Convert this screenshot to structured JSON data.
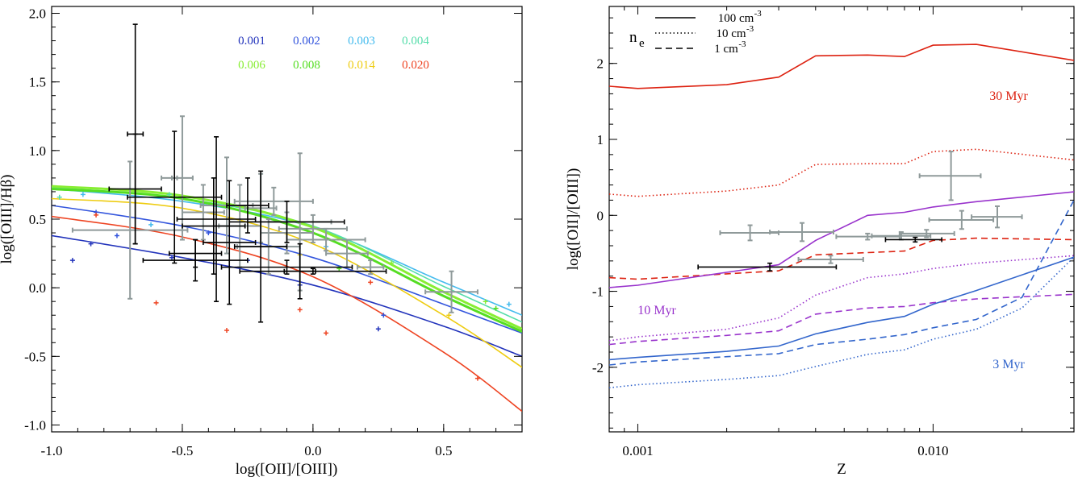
{
  "chart_data": [
    {
      "type": "line",
      "panel": "left",
      "xlabel": "log([OII]/[OIII])",
      "ylabel": "log([OIII]/Hβ)",
      "xlim": [
        -1.0,
        0.8
      ],
      "ylim": [
        -1.05,
        2.05
      ],
      "xticks": [
        -1.0,
        -0.5,
        0.0,
        0.5
      ],
      "xtick_labels": [
        "-1.0",
        "-0.5",
        "0.0",
        "0.5"
      ],
      "yticks": [
        -1.0,
        -0.5,
        0.0,
        0.5,
        1.0,
        1.5,
        2.0
      ],
      "ytick_labels": [
        "-1.0",
        "-0.5",
        "0.0",
        "0.5",
        "1.0",
        "1.5",
        "2.0"
      ],
      "legend": [
        {
          "label": "0.001",
          "color": "#2233bb"
        },
        {
          "label": "0.002",
          "color": "#3355dd"
        },
        {
          "label": "0.003",
          "color": "#44bbee"
        },
        {
          "label": "0.004",
          "color": "#55ddaa"
        },
        {
          "label": "0.006",
          "color": "#88ee33"
        },
        {
          "label": "0.008",
          "color": "#55dd22"
        },
        {
          "label": "0.014",
          "color": "#eecc11"
        },
        {
          "label": "0.020",
          "color": "#ee4422"
        }
      ],
      "series": [
        {
          "name": "0.001",
          "color": "#2233bb",
          "x": [
            -1.0,
            -0.5,
            0.0,
            0.5,
            0.8
          ],
          "y": [
            0.38,
            0.22,
            0.02,
            -0.28,
            -0.5
          ]
        },
        {
          "name": "0.002",
          "color": "#3355dd",
          "x": [
            -1.0,
            -0.5,
            0.0,
            0.5,
            0.8
          ],
          "y": [
            0.6,
            0.45,
            0.22,
            -0.12,
            -0.33
          ]
        },
        {
          "name": "0.003",
          "color": "#44bbee",
          "x": [
            -1.0,
            -0.5,
            0.0,
            0.5,
            0.8
          ],
          "y": [
            0.72,
            0.63,
            0.44,
            0.04,
            -0.2
          ]
        },
        {
          "name": "0.004",
          "color": "#55ddaa",
          "x": [
            -1.0,
            -0.5,
            0.0,
            0.5,
            0.8
          ],
          "y": [
            0.73,
            0.65,
            0.45,
            0.01,
            -0.25
          ]
        },
        {
          "name": "0.006",
          "color": "#88ee33",
          "x": [
            -1.0,
            -0.5,
            0.0,
            0.5,
            0.8
          ],
          "y": [
            0.74,
            0.67,
            0.44,
            -0.03,
            -0.3
          ]
        },
        {
          "name": "0.008",
          "color": "#55dd22",
          "x": [
            -1.0,
            -0.5,
            0.0,
            0.5,
            0.8
          ],
          "y": [
            0.72,
            0.65,
            0.4,
            -0.06,
            -0.32
          ]
        },
        {
          "name": "0.014",
          "color": "#eecc11",
          "x": [
            -1.0,
            -0.5,
            0.0,
            0.5,
            0.8
          ],
          "y": [
            0.65,
            0.58,
            0.32,
            -0.2,
            -0.58
          ]
        },
        {
          "name": "0.020",
          "color": "#ee4422",
          "x": [
            -1.0,
            -0.5,
            0.0,
            0.5,
            0.8
          ],
          "y": [
            0.52,
            0.37,
            0.08,
            -0.47,
            -0.9
          ]
        }
      ],
      "model_points": [
        {
          "color": "#2233bb",
          "x": -0.92,
          "y": 0.2
        },
        {
          "color": "#2233bb",
          "x": -0.85,
          "y": 0.32
        },
        {
          "color": "#2233bb",
          "x": -0.54,
          "y": 0.22
        },
        {
          "color": "#2233bb",
          "x": -0.25,
          "y": 0.2
        },
        {
          "color": "#2233bb",
          "x": -0.05,
          "y": 0.02
        },
        {
          "color": "#2233bb",
          "x": 0.25,
          "y": -0.3
        },
        {
          "color": "#3355dd",
          "x": -0.83,
          "y": 0.55
        },
        {
          "color": "#3355dd",
          "x": -0.75,
          "y": 0.38
        },
        {
          "color": "#3355dd",
          "x": -0.4,
          "y": 0.4
        },
        {
          "color": "#3355dd",
          "x": 0.27,
          "y": -0.2
        },
        {
          "color": "#44bbee",
          "x": -0.88,
          "y": 0.68
        },
        {
          "color": "#44bbee",
          "x": -0.62,
          "y": 0.46
        },
        {
          "color": "#44bbee",
          "x": 0.05,
          "y": 0.3
        },
        {
          "color": "#44bbee",
          "x": 0.75,
          "y": -0.12
        },
        {
          "color": "#55ddaa",
          "x": -0.97,
          "y": 0.66
        },
        {
          "color": "#55ddaa",
          "x": -0.55,
          "y": 0.68
        },
        {
          "color": "#88ee33",
          "x": 0.3,
          "y": 0.18
        },
        {
          "color": "#88ee33",
          "x": 0.66,
          "y": -0.1
        },
        {
          "color": "#55dd22",
          "x": 0.1,
          "y": 0.14
        },
        {
          "color": "#55dd22",
          "x": 0.7,
          "y": -0.15
        },
        {
          "color": "#eecc11",
          "x": -0.05,
          "y": 0.24
        },
        {
          "color": "#eecc11",
          "x": 0.52,
          "y": -0.2
        },
        {
          "color": "#ee4422",
          "x": -0.83,
          "y": 0.53
        },
        {
          "color": "#ee4422",
          "x": -0.6,
          "y": -0.11
        },
        {
          "color": "#ee4422",
          "x": -0.33,
          "y": -0.31
        },
        {
          "color": "#ee4422",
          "x": -0.05,
          "y": -0.16
        },
        {
          "color": "#ee4422",
          "x": 0.05,
          "y": -0.33
        },
        {
          "color": "#ee4422",
          "x": 0.22,
          "y": 0.04
        },
        {
          "color": "#ee4422",
          "x": 0.63,
          "y": -0.66
        }
      ],
      "observations_gray": [
        {
          "x": -0.7,
          "y": 0.42,
          "xerr": 0.22,
          "yerr": 0.5
        },
        {
          "x": -0.55,
          "y": 0.8,
          "xerr": 0.03,
          "yerr": 0.0
        },
        {
          "x": -0.5,
          "y": 0.8,
          "xerr": 0.04,
          "yerr": 0.45
        },
        {
          "x": -0.42,
          "y": 0.55,
          "xerr": 0.08,
          "yerr": 0.2
        },
        {
          "x": -0.33,
          "y": 0.6,
          "xerr": 0.1,
          "yerr": 0.35
        },
        {
          "x": -0.28,
          "y": 0.45,
          "xerr": 0.08,
          "yerr": 0.3
        },
        {
          "x": -0.2,
          "y": 0.58,
          "xerr": 0.06,
          "yerr": 0.25
        },
        {
          "x": -0.17,
          "y": 0.3,
          "xerr": 0.12,
          "yerr": 0.2
        },
        {
          "x": -0.15,
          "y": 0.63,
          "xerr": 0.15,
          "yerr": 0.1
        },
        {
          "x": -0.05,
          "y": 0.48,
          "xerr": 0.12,
          "yerr": 0.5
        },
        {
          "x": -0.1,
          "y": 0.4,
          "xerr": 0.1,
          "yerr": 0.15
        },
        {
          "x": 0.0,
          "y": 0.43,
          "xerr": 0.13,
          "yerr": 0.1
        },
        {
          "x": 0.05,
          "y": 0.35,
          "xerr": 0.15,
          "yerr": 0.08
        },
        {
          "x": 0.13,
          "y": 0.25,
          "xerr": 0.08,
          "yerr": 0.1
        },
        {
          "x": 0.22,
          "y": 0.15,
          "xerr": 0.05,
          "yerr": 0.05
        },
        {
          "x": 0.53,
          "y": -0.03,
          "xerr": 0.1,
          "yerr": 0.15
        }
      ],
      "observations_black": [
        {
          "x": -0.68,
          "y": 1.12,
          "xerr": 0.03,
          "yerr": 0.8
        },
        {
          "x": -0.68,
          "y": 0.72,
          "xerr": 0.1,
          "yerr": 0.4
        },
        {
          "x": -0.53,
          "y": 0.66,
          "xerr": 0.18,
          "yerr": 0.48
        },
        {
          "x": -0.45,
          "y": 0.25,
          "xerr": 0.1,
          "yerr": 0.1
        },
        {
          "x": -0.45,
          "y": 0.2,
          "xerr": 0.2,
          "yerr": 0.15
        },
        {
          "x": -0.38,
          "y": 0.45,
          "xerr": 0.12,
          "yerr": 0.35
        },
        {
          "x": -0.37,
          "y": 0.5,
          "xerr": 0.15,
          "yerr": 0.6
        },
        {
          "x": -0.32,
          "y": 0.33,
          "xerr": 0.1,
          "yerr": 0.45
        },
        {
          "x": -0.25,
          "y": 0.6,
          "xerr": 0.08,
          "yerr": 0.2
        },
        {
          "x": -0.2,
          "y": 0.3,
          "xerr": 0.1,
          "yerr": 0.55
        },
        {
          "x": -0.1,
          "y": 0.48,
          "xerr": 0.22,
          "yerr": 0.15
        },
        {
          "x": -0.1,
          "y": 0.15,
          "xerr": 0.25,
          "yerr": 0.05
        },
        {
          "x": -0.05,
          "y": 0.12,
          "xerr": 0.06,
          "yerr": 0.2
        },
        {
          "x": 0.0,
          "y": 0.12,
          "xerr": 0.28,
          "yerr": 0.02
        }
      ]
    },
    {
      "type": "line",
      "panel": "right",
      "xlabel": "Z",
      "ylabel": "log([OII]/[OIII])",
      "xscale": "log",
      "xlim": [
        0.0008,
        0.03
      ],
      "ylim": [
        -2.85,
        2.75
      ],
      "xticks": [
        0.001,
        0.01
      ],
      "xtick_labels": [
        "0.001",
        "0.010"
      ],
      "yticks": [
        -2,
        -1,
        0,
        1,
        2
      ],
      "ytick_labels": [
        "-2",
        "-1",
        "0",
        "1",
        "2"
      ],
      "legend_title": "n",
      "legend_title_sub": "e",
      "legend": [
        {
          "label": "100 cm",
          "sup": "-3",
          "dash": "solid"
        },
        {
          "label": "10 cm",
          "sup": "-3",
          "dash": "dotted"
        },
        {
          "label": "1 cm",
          "sup": "-3",
          "dash": "dashed"
        }
      ],
      "annotations": [
        {
          "text": "30 Myr",
          "color": "#dd2211"
        },
        {
          "text": "10 Myr",
          "color": "#9933cc"
        },
        {
          "text": "3 Myr",
          "color": "#3366cc"
        }
      ],
      "series": [
        {
          "name": "30 Myr, 100 cm-3",
          "color": "#dd2211",
          "dash": "solid",
          "x": [
            0.0008,
            0.001,
            0.002,
            0.003,
            0.004,
            0.006,
            0.008,
            0.01,
            0.014,
            0.03
          ],
          "y": [
            1.7,
            1.67,
            1.72,
            1.82,
            2.1,
            2.11,
            2.09,
            2.24,
            2.25,
            2.04
          ]
        },
        {
          "name": "30 Myr, 10 cm-3",
          "color": "#dd2211",
          "dash": "dotted",
          "x": [
            0.0008,
            0.001,
            0.002,
            0.003,
            0.004,
            0.006,
            0.008,
            0.01,
            0.014,
            0.03
          ],
          "y": [
            0.28,
            0.25,
            0.32,
            0.4,
            0.67,
            0.68,
            0.68,
            0.84,
            0.87,
            0.73
          ]
        },
        {
          "name": "30 Myr, 1 cm-3",
          "color": "#dd2211",
          "dash": "dashed",
          "x": [
            0.0008,
            0.001,
            0.002,
            0.003,
            0.004,
            0.006,
            0.008,
            0.01,
            0.014,
            0.03
          ],
          "y": [
            -0.82,
            -0.84,
            -0.77,
            -0.73,
            -0.52,
            -0.49,
            -0.47,
            -0.33,
            -0.3,
            -0.32
          ]
        },
        {
          "name": "10 Myr, 100 cm-3",
          "color": "#9933cc",
          "dash": "solid",
          "x": [
            0.0008,
            0.001,
            0.002,
            0.003,
            0.004,
            0.006,
            0.008,
            0.01,
            0.014,
            0.03
          ],
          "y": [
            -0.95,
            -0.92,
            -0.75,
            -0.65,
            -0.33,
            0.0,
            0.04,
            0.11,
            0.18,
            0.31
          ]
        },
        {
          "name": "10 Myr, 10 cm-3",
          "color": "#9933cc",
          "dash": "dotted",
          "x": [
            0.0008,
            0.001,
            0.002,
            0.003,
            0.004,
            0.006,
            0.008,
            0.01,
            0.014,
            0.03
          ],
          "y": [
            -1.65,
            -1.6,
            -1.5,
            -1.35,
            -1.05,
            -0.82,
            -0.77,
            -0.7,
            -0.63,
            -0.53
          ]
        },
        {
          "name": "10 Myr, 1 cm-3",
          "color": "#9933cc",
          "dash": "dashed",
          "x": [
            0.0008,
            0.001,
            0.002,
            0.003,
            0.004,
            0.006,
            0.008,
            0.01,
            0.014,
            0.03
          ],
          "y": [
            -1.7,
            -1.66,
            -1.58,
            -1.52,
            -1.3,
            -1.22,
            -1.2,
            -1.15,
            -1.1,
            -1.04
          ]
        },
        {
          "name": "3 Myr, 100 cm-3",
          "color": "#3366cc",
          "dash": "solid",
          "x": [
            0.0008,
            0.001,
            0.002,
            0.003,
            0.004,
            0.006,
            0.008,
            0.01,
            0.014,
            0.03
          ],
          "y": [
            -1.9,
            -1.87,
            -1.79,
            -1.72,
            -1.56,
            -1.41,
            -1.33,
            -1.17,
            -0.99,
            -0.55
          ]
        },
        {
          "name": "3 Myr, 10 cm-3",
          "color": "#3366cc",
          "dash": "dotted",
          "x": [
            0.0008,
            0.001,
            0.002,
            0.003,
            0.004,
            0.006,
            0.008,
            0.01,
            0.014,
            0.02,
            0.03
          ],
          "y": [
            -2.27,
            -2.23,
            -2.16,
            -2.11,
            -1.99,
            -1.83,
            -1.77,
            -1.63,
            -1.5,
            -1.22,
            -0.55
          ]
        },
        {
          "name": "3 Myr, 1 cm-3",
          "color": "#3366cc",
          "dash": "dashed",
          "x": [
            0.0008,
            0.001,
            0.002,
            0.003,
            0.004,
            0.006,
            0.008,
            0.01,
            0.014,
            0.02,
            0.03
          ],
          "y": [
            -1.97,
            -1.93,
            -1.86,
            -1.82,
            -1.7,
            -1.63,
            -1.57,
            -1.48,
            -1.37,
            -1.08,
            0.2
          ]
        }
      ],
      "observations_gray": [
        {
          "x": 0.0024,
          "y": -0.23,
          "xlo": 0.0019,
          "xhi": 0.003,
          "yerr": 0.1
        },
        {
          "x": 0.0036,
          "y": -0.22,
          "xlo": 0.0028,
          "xhi": 0.0046,
          "yerr": 0.12
        },
        {
          "x": 0.0045,
          "y": -0.58,
          "xlo": 0.0035,
          "xhi": 0.0058,
          "yerr": 0.05
        },
        {
          "x": 0.006,
          "y": -0.28,
          "xlo": 0.0047,
          "xhi": 0.0077,
          "yerr": 0.04
        },
        {
          "x": 0.0078,
          "y": -0.27,
          "xlo": 0.0062,
          "xhi": 0.0098,
          "yerr": 0.05
        },
        {
          "x": 0.0095,
          "y": -0.24,
          "xlo": 0.0077,
          "xhi": 0.0118,
          "yerr": 0.05
        },
        {
          "x": 0.0115,
          "y": 0.52,
          "xlo": 0.009,
          "xhi": 0.0145,
          "yerr": 0.32
        },
        {
          "x": 0.0125,
          "y": -0.06,
          "xlo": 0.0097,
          "xhi": 0.016,
          "yerr": 0.12
        },
        {
          "x": 0.0165,
          "y": -0.02,
          "xlo": 0.0135,
          "xhi": 0.02,
          "yerr": 0.14
        }
      ],
      "observations_black": [
        {
          "x": 0.0028,
          "y": -0.68,
          "xlo": 0.0016,
          "xhi": 0.0047,
          "yerr": 0.05
        },
        {
          "x": 0.0087,
          "y": -0.32,
          "xlo": 0.0069,
          "xhi": 0.0107,
          "yerr": 0.03
        }
      ]
    }
  ]
}
